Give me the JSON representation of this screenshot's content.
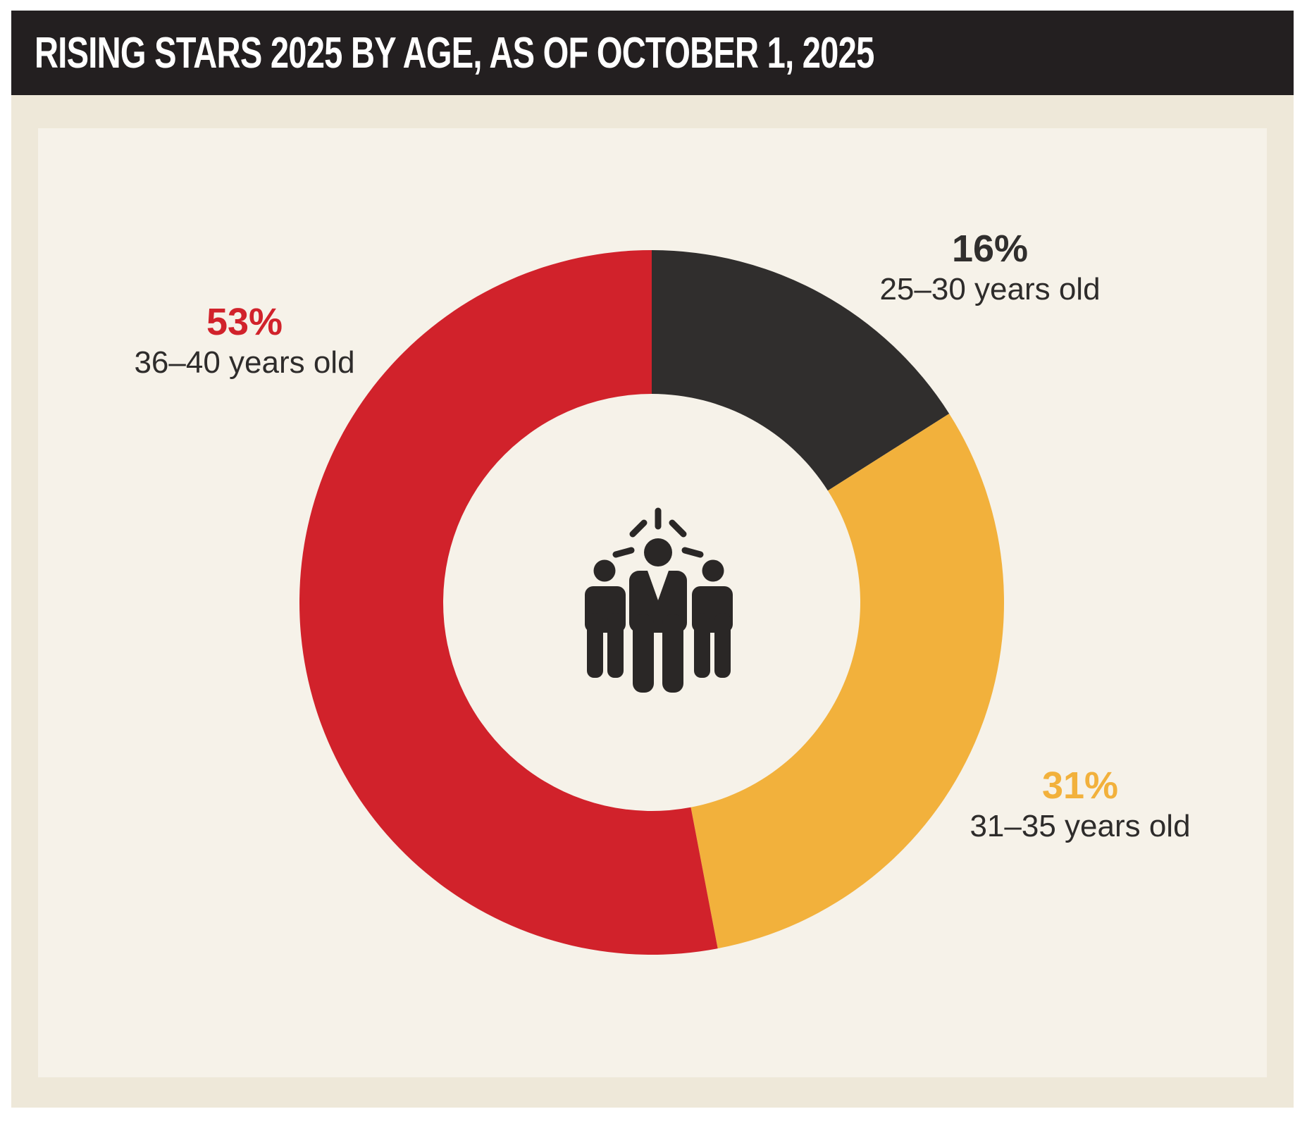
{
  "header": {
    "title": "RISING STARS 2025 BY AGE, AS OF OCTOBER 1, 2025"
  },
  "chart_data": {
    "type": "pie",
    "subtype": "donut",
    "title": "RISING STARS 2025 BY AGE, AS OF OCTOBER 1, 2025",
    "start_angle_deg": 0,
    "direction": "clockwise",
    "inner_radius_ratio": 0.592,
    "slices": [
      {
        "label": "25–30 years old",
        "pct": 16,
        "pct_label": "16%",
        "color": "#302e2d"
      },
      {
        "label": "31–35 years old",
        "pct": 31,
        "pct_label": "31%",
        "color": "#f2b13c"
      },
      {
        "label": "36–40 years old",
        "pct": 53,
        "pct_label": "53%",
        "color": "#d1222b"
      }
    ],
    "center_icon": "people-group-shining-icon",
    "legend_position": "labels-around-chart"
  },
  "colors": {
    "page_bg": "#ffffff",
    "header_bg": "#231f20",
    "header_text": "#ffffff",
    "outer_panel_bg": "#eee8d9",
    "inner_panel_bg": "#f6f2e9",
    "label_text": "#2e2c2b",
    "icon_fill": "#2a2726"
  }
}
